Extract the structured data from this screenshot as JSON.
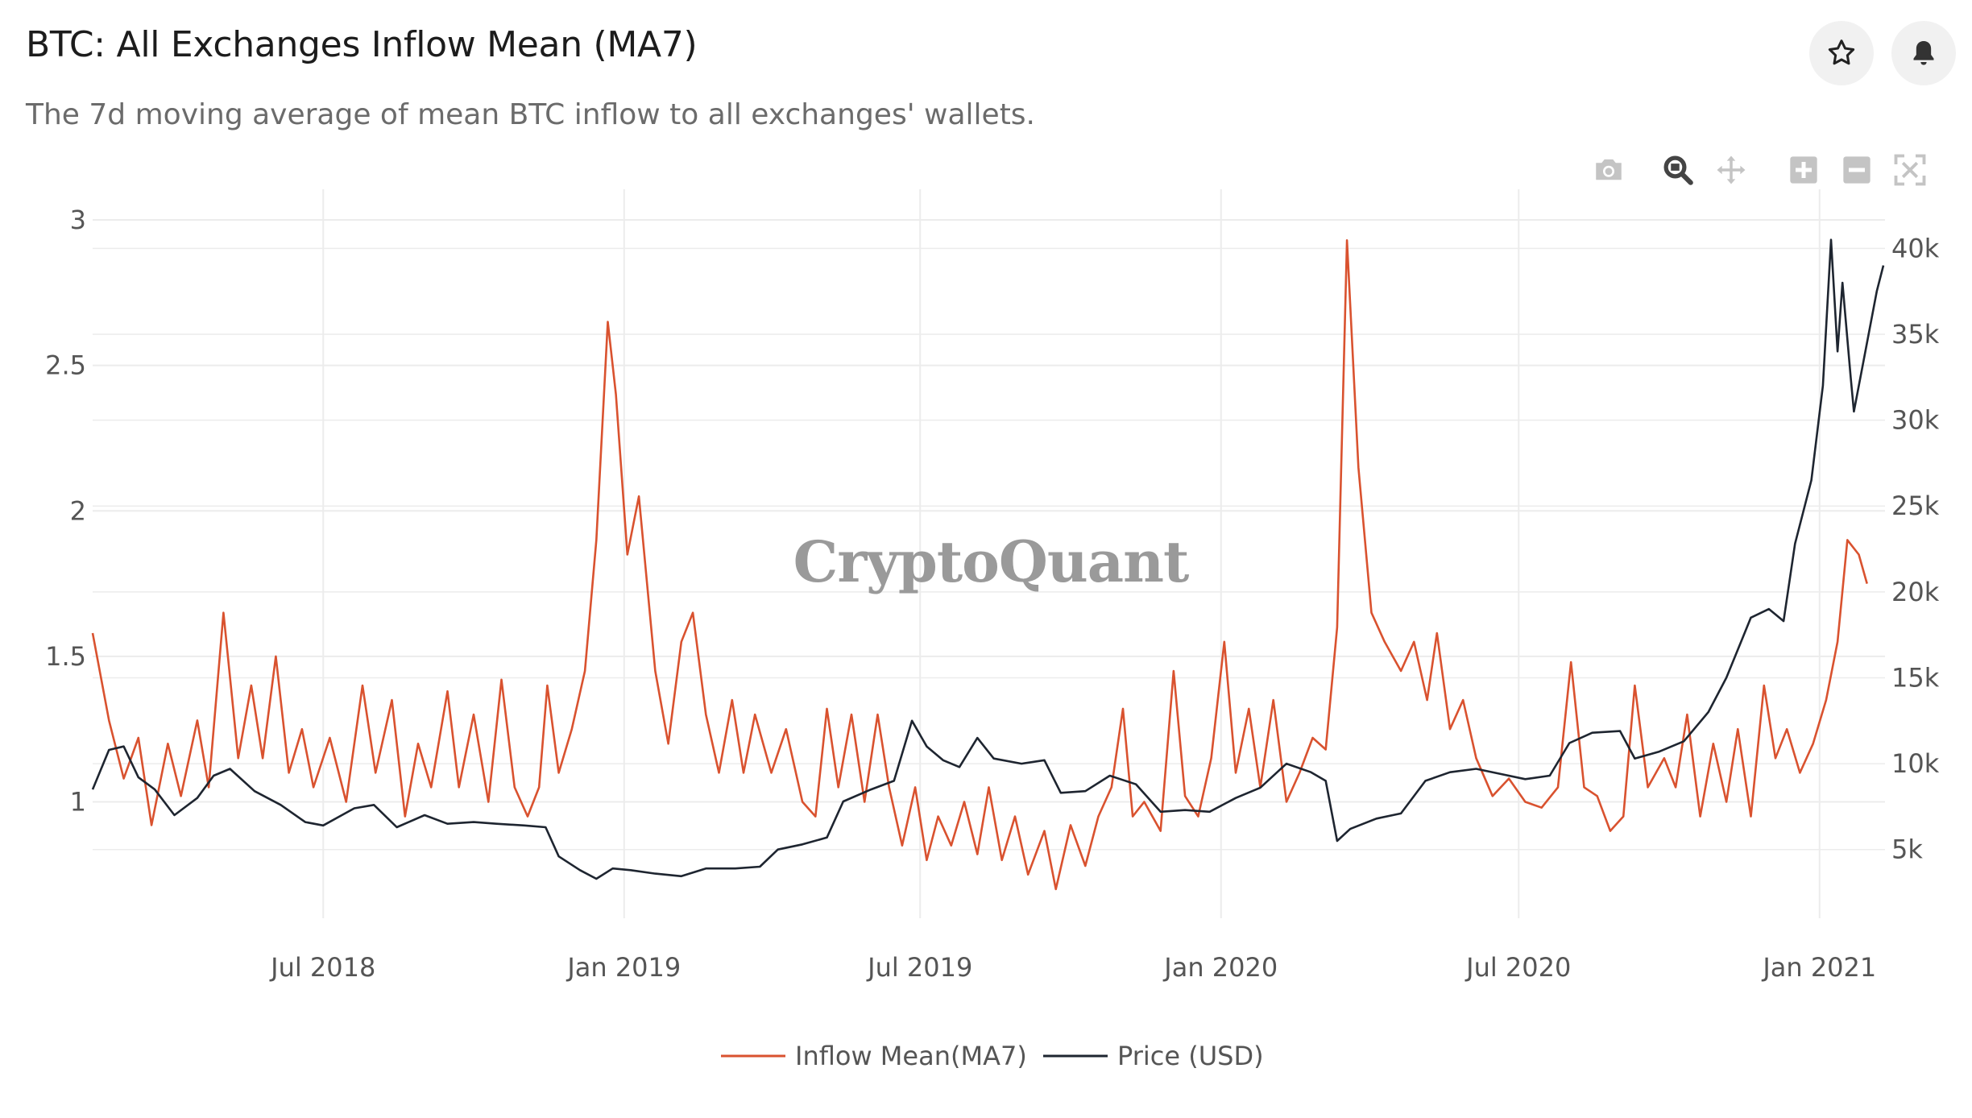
{
  "header": {
    "title": "BTC: All Exchanges Inflow Mean (MA7)",
    "subtitle": "The 7d moving average of mean BTC inflow to all exchanges' wallets."
  },
  "actions": {
    "favorite_icon": "star-icon",
    "alert_icon": "bell-icon"
  },
  "modebar": [
    "camera-icon",
    "zoom-icon",
    "pan-icon",
    "zoom-in-icon",
    "zoom-out-icon",
    "autoscale-icon"
  ],
  "watermark": "CryptoQuant",
  "colors": {
    "inflow": "#d9522f",
    "price": "#1e2530",
    "grid": "#ececec"
  },
  "chart_data": {
    "type": "line",
    "x_range": [
      "2018-02-10",
      "2021-02-10"
    ],
    "x_ticks": [
      {
        "date": "2018-07-01",
        "label": "Jul 2018"
      },
      {
        "date": "2019-01-01",
        "label": "Jan 2019"
      },
      {
        "date": "2019-07-01",
        "label": "Jul 2019"
      },
      {
        "date": "2020-01-01",
        "label": "Jan 2020"
      },
      {
        "date": "2020-07-01",
        "label": "Jul 2020"
      },
      {
        "date": "2021-01-01",
        "label": "Jan 2021"
      }
    ],
    "y_left": {
      "range": [
        0.6,
        3.05
      ],
      "ticks": [
        {
          "v": 1,
          "label": "1"
        },
        {
          "v": 1.5,
          "label": "1.5"
        },
        {
          "v": 2,
          "label": "2"
        },
        {
          "v": 2.5,
          "label": "2.5"
        },
        {
          "v": 3,
          "label": "3"
        }
      ]
    },
    "y_right": {
      "range": [
        1000,
        42500
      ],
      "ticks": [
        {
          "v": 5000,
          "label": "5k"
        },
        {
          "v": 10000,
          "label": "10k"
        },
        {
          "v": 15000,
          "label": "15k"
        },
        {
          "v": 20000,
          "label": "20k"
        },
        {
          "v": 25000,
          "label": "25k"
        },
        {
          "v": 30000,
          "label": "30k"
        },
        {
          "v": 35000,
          "label": "35k"
        },
        {
          "v": 40000,
          "label": "40k"
        }
      ]
    },
    "grid": true,
    "legend": "bottom-center",
    "series": [
      {
        "name": "Inflow Mean(MA7)",
        "axis": "left",
        "color": "#d9522f",
        "points": [
          [
            "2018-02-10",
            1.58
          ],
          [
            "2018-02-20",
            1.28
          ],
          [
            "2018-03-01",
            1.08
          ],
          [
            "2018-03-10",
            1.22
          ],
          [
            "2018-03-18",
            0.92
          ],
          [
            "2018-03-28",
            1.2
          ],
          [
            "2018-04-05",
            1.02
          ],
          [
            "2018-04-15",
            1.28
          ],
          [
            "2018-04-22",
            1.05
          ],
          [
            "2018-05-01",
            1.65
          ],
          [
            "2018-05-10",
            1.15
          ],
          [
            "2018-05-18",
            1.4
          ],
          [
            "2018-05-25",
            1.15
          ],
          [
            "2018-06-02",
            1.5
          ],
          [
            "2018-06-10",
            1.1
          ],
          [
            "2018-06-18",
            1.25
          ],
          [
            "2018-06-25",
            1.05
          ],
          [
            "2018-07-05",
            1.22
          ],
          [
            "2018-07-15",
            1.0
          ],
          [
            "2018-07-25",
            1.4
          ],
          [
            "2018-08-02",
            1.1
          ],
          [
            "2018-08-12",
            1.35
          ],
          [
            "2018-08-20",
            0.95
          ],
          [
            "2018-08-28",
            1.2
          ],
          [
            "2018-09-05",
            1.05
          ],
          [
            "2018-09-15",
            1.38
          ],
          [
            "2018-09-22",
            1.05
          ],
          [
            "2018-10-01",
            1.3
          ],
          [
            "2018-10-10",
            1.0
          ],
          [
            "2018-10-18",
            1.42
          ],
          [
            "2018-10-26",
            1.05
          ],
          [
            "2018-11-03",
            0.95
          ],
          [
            "2018-11-10",
            1.05
          ],
          [
            "2018-11-15",
            1.4
          ],
          [
            "2018-11-22",
            1.1
          ],
          [
            "2018-11-30",
            1.25
          ],
          [
            "2018-12-08",
            1.45
          ],
          [
            "2018-12-15",
            1.9
          ],
          [
            "2018-12-22",
            2.65
          ],
          [
            "2018-12-27",
            2.4
          ],
          [
            "2019-01-03",
            1.85
          ],
          [
            "2019-01-10",
            2.05
          ],
          [
            "2019-01-20",
            1.45
          ],
          [
            "2019-01-28",
            1.2
          ],
          [
            "2019-02-05",
            1.55
          ],
          [
            "2019-02-12",
            1.65
          ],
          [
            "2019-02-20",
            1.3
          ],
          [
            "2019-02-28",
            1.1
          ],
          [
            "2019-03-08",
            1.35
          ],
          [
            "2019-03-15",
            1.1
          ],
          [
            "2019-03-22",
            1.3
          ],
          [
            "2019-04-01",
            1.1
          ],
          [
            "2019-04-10",
            1.25
          ],
          [
            "2019-04-20",
            1.0
          ],
          [
            "2019-04-28",
            0.95
          ],
          [
            "2019-05-05",
            1.32
          ],
          [
            "2019-05-12",
            1.05
          ],
          [
            "2019-05-20",
            1.3
          ],
          [
            "2019-05-28",
            1.0
          ],
          [
            "2019-06-05",
            1.3
          ],
          [
            "2019-06-12",
            1.05
          ],
          [
            "2019-06-20",
            0.85
          ],
          [
            "2019-06-28",
            1.05
          ],
          [
            "2019-07-05",
            0.8
          ],
          [
            "2019-07-12",
            0.95
          ],
          [
            "2019-07-20",
            0.85
          ],
          [
            "2019-07-28",
            1.0
          ],
          [
            "2019-08-05",
            0.82
          ],
          [
            "2019-08-12",
            1.05
          ],
          [
            "2019-08-20",
            0.8
          ],
          [
            "2019-08-28",
            0.95
          ],
          [
            "2019-09-05",
            0.75
          ],
          [
            "2019-09-15",
            0.9
          ],
          [
            "2019-09-22",
            0.7
          ],
          [
            "2019-10-01",
            0.92
          ],
          [
            "2019-10-10",
            0.78
          ],
          [
            "2019-10-18",
            0.95
          ],
          [
            "2019-10-26",
            1.05
          ],
          [
            "2019-11-02",
            1.32
          ],
          [
            "2019-11-08",
            0.95
          ],
          [
            "2019-11-15",
            1.0
          ],
          [
            "2019-11-25",
            0.9
          ],
          [
            "2019-12-03",
            1.45
          ],
          [
            "2019-12-10",
            1.02
          ],
          [
            "2019-12-18",
            0.95
          ],
          [
            "2019-12-26",
            1.15
          ],
          [
            "2020-01-03",
            1.55
          ],
          [
            "2020-01-10",
            1.1
          ],
          [
            "2020-01-18",
            1.32
          ],
          [
            "2020-01-25",
            1.05
          ],
          [
            "2020-02-02",
            1.35
          ],
          [
            "2020-02-10",
            1.0
          ],
          [
            "2020-02-18",
            1.1
          ],
          [
            "2020-02-26",
            1.22
          ],
          [
            "2020-03-05",
            1.18
          ],
          [
            "2020-03-12",
            1.6
          ],
          [
            "2020-03-18",
            2.93
          ],
          [
            "2020-03-25",
            2.15
          ],
          [
            "2020-04-02",
            1.65
          ],
          [
            "2020-04-10",
            1.55
          ],
          [
            "2020-04-20",
            1.45
          ],
          [
            "2020-04-28",
            1.55
          ],
          [
            "2020-05-06",
            1.35
          ],
          [
            "2020-05-12",
            1.58
          ],
          [
            "2020-05-20",
            1.25
          ],
          [
            "2020-05-28",
            1.35
          ],
          [
            "2020-06-05",
            1.15
          ],
          [
            "2020-06-15",
            1.02
          ],
          [
            "2020-06-25",
            1.08
          ],
          [
            "2020-07-05",
            1.0
          ],
          [
            "2020-07-15",
            0.98
          ],
          [
            "2020-07-25",
            1.05
          ],
          [
            "2020-08-02",
            1.48
          ],
          [
            "2020-08-10",
            1.05
          ],
          [
            "2020-08-18",
            1.02
          ],
          [
            "2020-08-26",
            0.9
          ],
          [
            "2020-09-03",
            0.95
          ],
          [
            "2020-09-10",
            1.4
          ],
          [
            "2020-09-18",
            1.05
          ],
          [
            "2020-09-28",
            1.15
          ],
          [
            "2020-10-05",
            1.05
          ],
          [
            "2020-10-12",
            1.3
          ],
          [
            "2020-10-20",
            0.95
          ],
          [
            "2020-10-28",
            1.2
          ],
          [
            "2020-11-05",
            1.0
          ],
          [
            "2020-11-12",
            1.25
          ],
          [
            "2020-11-20",
            0.95
          ],
          [
            "2020-11-28",
            1.4
          ],
          [
            "2020-12-05",
            1.15
          ],
          [
            "2020-12-12",
            1.25
          ],
          [
            "2020-12-20",
            1.1
          ],
          [
            "2020-12-28",
            1.2
          ],
          [
            "2021-01-05",
            1.35
          ],
          [
            "2021-01-12",
            1.55
          ],
          [
            "2021-01-18",
            1.9
          ],
          [
            "2021-01-25",
            1.85
          ],
          [
            "2021-01-30",
            1.75
          ]
        ]
      },
      {
        "name": "Price (USD)",
        "axis": "right",
        "color": "#1e2530",
        "points": [
          [
            "2018-02-10",
            8500
          ],
          [
            "2018-02-20",
            10800
          ],
          [
            "2018-03-01",
            11000
          ],
          [
            "2018-03-10",
            9200
          ],
          [
            "2018-03-20",
            8500
          ],
          [
            "2018-04-01",
            7000
          ],
          [
            "2018-04-15",
            8000
          ],
          [
            "2018-04-25",
            9300
          ],
          [
            "2018-05-05",
            9700
          ],
          [
            "2018-05-20",
            8400
          ],
          [
            "2018-06-05",
            7600
          ],
          [
            "2018-06-20",
            6600
          ],
          [
            "2018-07-01",
            6400
          ],
          [
            "2018-07-20",
            7400
          ],
          [
            "2018-08-01",
            7600
          ],
          [
            "2018-08-15",
            6300
          ],
          [
            "2018-09-01",
            7000
          ],
          [
            "2018-09-15",
            6500
          ],
          [
            "2018-10-01",
            6600
          ],
          [
            "2018-10-15",
            6500
          ],
          [
            "2018-11-01",
            6400
          ],
          [
            "2018-11-14",
            6300
          ],
          [
            "2018-11-22",
            4600
          ],
          [
            "2018-12-05",
            3800
          ],
          [
            "2018-12-15",
            3300
          ],
          [
            "2018-12-25",
            3900
          ],
          [
            "2019-01-05",
            3800
          ],
          [
            "2019-01-20",
            3600
          ],
          [
            "2019-02-05",
            3450
          ],
          [
            "2019-02-20",
            3900
          ],
          [
            "2019-03-10",
            3900
          ],
          [
            "2019-03-25",
            4000
          ],
          [
            "2019-04-05",
            5000
          ],
          [
            "2019-04-20",
            5300
          ],
          [
            "2019-05-05",
            5700
          ],
          [
            "2019-05-15",
            7800
          ],
          [
            "2019-06-01",
            8500
          ],
          [
            "2019-06-15",
            9000
          ],
          [
            "2019-06-26",
            12500
          ],
          [
            "2019-07-05",
            11000
          ],
          [
            "2019-07-15",
            10200
          ],
          [
            "2019-07-25",
            9800
          ],
          [
            "2019-08-05",
            11500
          ],
          [
            "2019-08-15",
            10300
          ],
          [
            "2019-09-01",
            10000
          ],
          [
            "2019-09-15",
            10200
          ],
          [
            "2019-09-25",
            8300
          ],
          [
            "2019-10-10",
            8400
          ],
          [
            "2019-10-25",
            9300
          ],
          [
            "2019-11-10",
            8800
          ],
          [
            "2019-11-25",
            7200
          ],
          [
            "2019-12-10",
            7300
          ],
          [
            "2019-12-25",
            7200
          ],
          [
            "2020-01-10",
            8000
          ],
          [
            "2020-01-25",
            8600
          ],
          [
            "2020-02-10",
            10000
          ],
          [
            "2020-02-25",
            9500
          ],
          [
            "2020-03-05",
            9000
          ],
          [
            "2020-03-12",
            5500
          ],
          [
            "2020-03-20",
            6200
          ],
          [
            "2020-04-05",
            6800
          ],
          [
            "2020-04-20",
            7100
          ],
          [
            "2020-05-05",
            9000
          ],
          [
            "2020-05-20",
            9500
          ],
          [
            "2020-06-05",
            9700
          ],
          [
            "2020-06-20",
            9400
          ],
          [
            "2020-07-05",
            9100
          ],
          [
            "2020-07-20",
            9300
          ],
          [
            "2020-08-01",
            11200
          ],
          [
            "2020-08-15",
            11800
          ],
          [
            "2020-09-01",
            11900
          ],
          [
            "2020-09-10",
            10300
          ],
          [
            "2020-09-25",
            10700
          ],
          [
            "2020-10-10",
            11300
          ],
          [
            "2020-10-25",
            13000
          ],
          [
            "2020-11-05",
            15000
          ],
          [
            "2020-11-20",
            18500
          ],
          [
            "2020-12-01",
            19000
          ],
          [
            "2020-12-10",
            18300
          ],
          [
            "2020-12-17",
            22800
          ],
          [
            "2020-12-27",
            26500
          ],
          [
            "2021-01-03",
            32000
          ],
          [
            "2021-01-08",
            40500
          ],
          [
            "2021-01-12",
            34000
          ],
          [
            "2021-01-15",
            38000
          ],
          [
            "2021-01-20",
            32500
          ],
          [
            "2021-01-22",
            30500
          ],
          [
            "2021-01-28",
            33500
          ],
          [
            "2021-02-05",
            37500
          ],
          [
            "2021-02-09",
            39000
          ]
        ]
      }
    ]
  }
}
